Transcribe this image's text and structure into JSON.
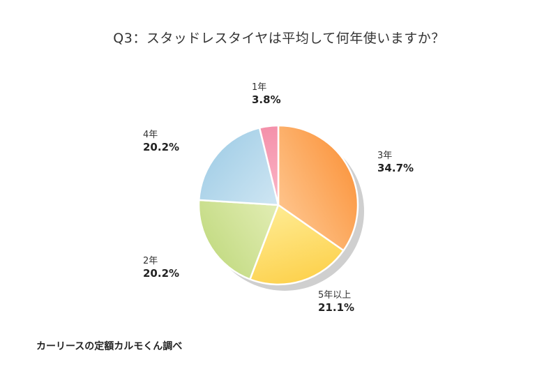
{
  "chart_data": {
    "type": "pie",
    "title": "Q3：スタッドレスタイヤは平均して何年使いますか？",
    "slices": [
      {
        "label": "3年",
        "value_text": "34.7%",
        "value": 34.7,
        "color_start": "#fec38a",
        "color_end": "#fb9a46"
      },
      {
        "label": "5年以上",
        "value_text": "21.1%",
        "value": 21.1,
        "color_start": "#feeb92",
        "color_end": "#fdd24f"
      },
      {
        "label": "2年",
        "value_text": "20.2%",
        "value": 20.2,
        "color_start": "#e2edb4",
        "color_end": "#c5dc86"
      },
      {
        "label": "4年",
        "value_text": "20.2%",
        "value": 20.2,
        "color_start": "#cfe6f3",
        "color_end": "#a8d1e8"
      },
      {
        "label": "1年",
        "value_text": "3.8%",
        "value": 3.8,
        "color_start": "#fbb6c6",
        "color_end": "#f490aa"
      }
    ]
  },
  "source": "カーリースの定額カルモくん調べ"
}
